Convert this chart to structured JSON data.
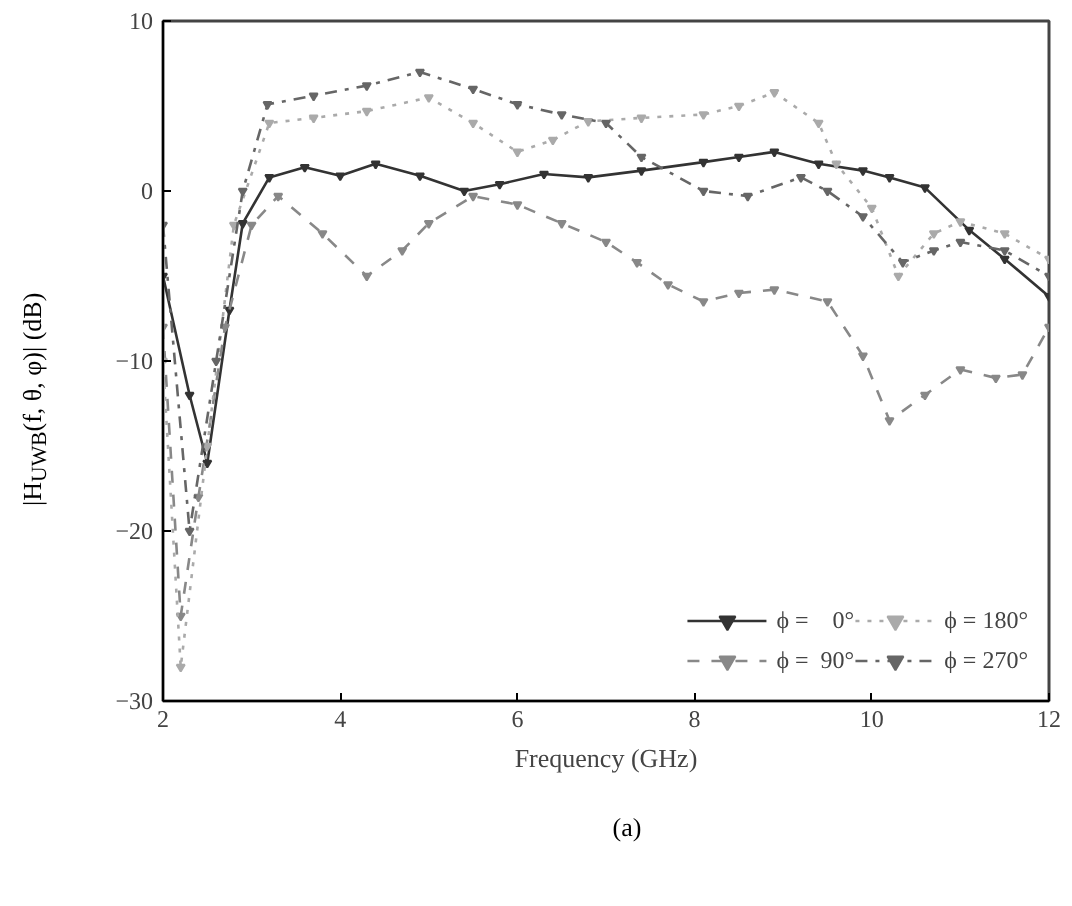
{
  "chart_data": {
    "type": "line",
    "xlabel": "Frequency (GHz)",
    "ylabel": "|H$_{UWB}$(f, θ, φ)| (dB)",
    "annotations": [
      "(a)"
    ],
    "xlim": [
      2,
      12
    ],
    "ylim": [
      -30,
      10
    ],
    "xticks": [
      2,
      4,
      6,
      8,
      10,
      12
    ],
    "yticks": [
      -30,
      -20,
      -10,
      0,
      10
    ],
    "grid": false,
    "legend": "bottom right",
    "marker": "triangle",
    "series": [
      {
        "name": "ϕ =    0°",
        "color": "#333333",
        "line_style": "solid",
        "x": [
          2.0,
          2.3,
          2.5,
          2.75,
          2.9,
          3.2,
          3.6,
          4.0,
          4.4,
          4.9,
          5.4,
          5.8,
          6.3,
          6.8,
          7.4,
          8.1,
          8.5,
          8.9,
          9.4,
          9.9,
          10.2,
          10.6,
          11.1,
          11.5,
          12.0
        ],
        "values": [
          -5,
          -12,
          -16,
          -7,
          -1.9,
          0.8,
          1.4,
          0.9,
          1.6,
          0.9,
          0,
          0.4,
          1.0,
          0.8,
          1.2,
          1.7,
          2.0,
          2.3,
          1.6,
          1.2,
          0.8,
          0.2,
          -2.3,
          -4,
          -6.2
        ]
      },
      {
        "name": "ϕ =  90°",
        "color": "#888888",
        "line_style": "dashed",
        "x": [
          2.0,
          2.2,
          2.4,
          2.7,
          3.0,
          3.3,
          3.8,
          4.3,
          4.7,
          5.0,
          5.5,
          6.0,
          6.5,
          7.0,
          7.35,
          7.7,
          8.1,
          8.5,
          8.9,
          9.5,
          9.9,
          10.2,
          10.6,
          11.0,
          11.4,
          11.7,
          12.0
        ],
        "values": [
          -8,
          -25,
          -18,
          -8,
          -2,
          -0.3,
          -2.5,
          -5.0,
          -3.5,
          -1.9,
          -0.3,
          -0.8,
          -1.9,
          -3,
          -4.2,
          -5.5,
          -6.5,
          -6,
          -5.8,
          -6.5,
          -9.7,
          -13.5,
          -12,
          -10.5,
          -11,
          -10.8,
          -8
        ]
      },
      {
        "name": "ϕ = 180°",
        "color": "#aaaaaa",
        "line_style": "dotted",
        "x": [
          2.0,
          2.2,
          2.5,
          2.8,
          3.2,
          3.7,
          4.3,
          5.0,
          5.5,
          6.0,
          6.4,
          6.8,
          7.4,
          8.1,
          8.5,
          8.9,
          9.4,
          9.6,
          10.0,
          10.3,
          10.7,
          11.0,
          11.5,
          12.0
        ],
        "values": [
          -10,
          -28,
          -15,
          -2,
          4.0,
          4.3,
          4.7,
          5.5,
          4.0,
          2.3,
          3.0,
          4.1,
          4.3,
          4.5,
          5.0,
          5.8,
          4.0,
          1.6,
          -1,
          -5,
          -2.5,
          -1.8,
          -2.5,
          -4
        ]
      },
      {
        "name": "ϕ = 270°",
        "color": "#666666",
        "line_style": "dashdot",
        "x": [
          2.0,
          2.3,
          2.6,
          2.9,
          3.18,
          3.7,
          4.3,
          4.9,
          5.5,
          6.0,
          6.5,
          7.0,
          7.4,
          8.1,
          8.6,
          9.2,
          9.5,
          9.9,
          10.35,
          10.7,
          11.0,
          11.5,
          12.0
        ],
        "values": [
          -2,
          -20,
          -10,
          0,
          5.1,
          5.6,
          6.2,
          7.0,
          6.0,
          5.1,
          4.5,
          4.0,
          2.0,
          0,
          -0.3,
          0.8,
          0,
          -1.5,
          -4.2,
          -3.5,
          -3,
          -3.5,
          -5
        ]
      }
    ]
  }
}
